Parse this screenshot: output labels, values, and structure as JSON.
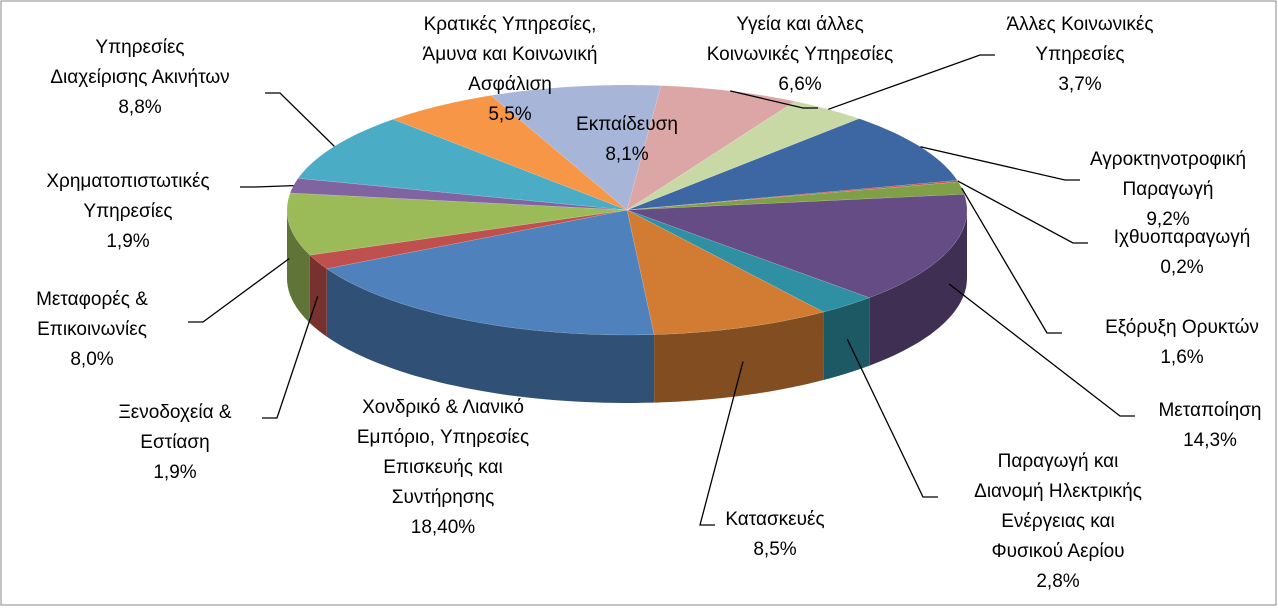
{
  "chart_data": {
    "type": "pie3d",
    "categories": [
      "Αγροκτηνοτροφική Παραγωγή",
      "Ιχθυοπαραγωγή",
      "Εξόρυξη Ορυκτών",
      "Μεταποίηση",
      "Παραγωγή και Διανομή Ηλεκτρικής Ενέργειας και Φυσικού Αερίου",
      "Κατασκευές",
      "Χονδρικό & Λιανικό Εμπόριο, Υπηρεσίες Επισκευής και Συντήρησης",
      "Ξενοδοχεία & Εστίαση",
      "Μεταφορές & Επικοινωνίες",
      "Χρηματοπιστωτικές Υπηρεσίες",
      "Υπηρεσίες Διαχείρισης Ακινήτων",
      "Κρατικές Υπηρεσίες, Άμυνα και Κοινωνική Ασφάλιση",
      "Εκπαίδευση",
      "Υγεία και άλλες Κοινωνικές Υπηρεσίες",
      "Άλλες Κοινωνικές Υπηρεσίες"
    ],
    "values": [
      9.2,
      0.2,
      1.6,
      14.3,
      2.8,
      8.5,
      18.4,
      1.9,
      8.0,
      1.9,
      8.8,
      5.5,
      8.1,
      6.6,
      3.7
    ],
    "value_labels": [
      "9,2%",
      "0,2%",
      "1,6%",
      "14,3%",
      "2,8%",
      "8,5%",
      "18,40%",
      "1,9%",
      "8,0%",
      "1,9%",
      "8,8%",
      "5,5%",
      "8,1%",
      "6,6%",
      "3,7%"
    ],
    "colors": [
      "#3d67a3",
      "#c0504d",
      "#7fa046",
      "#664c84",
      "#2f8fa3",
      "#d27c33",
      "#4f81bd",
      "#c0504d",
      "#9bbb59",
      "#8064a2",
      "#4bacc6",
      "#f79646",
      "#a7b6d8",
      "#dba6a5",
      "#c9d9a6"
    ]
  }
}
